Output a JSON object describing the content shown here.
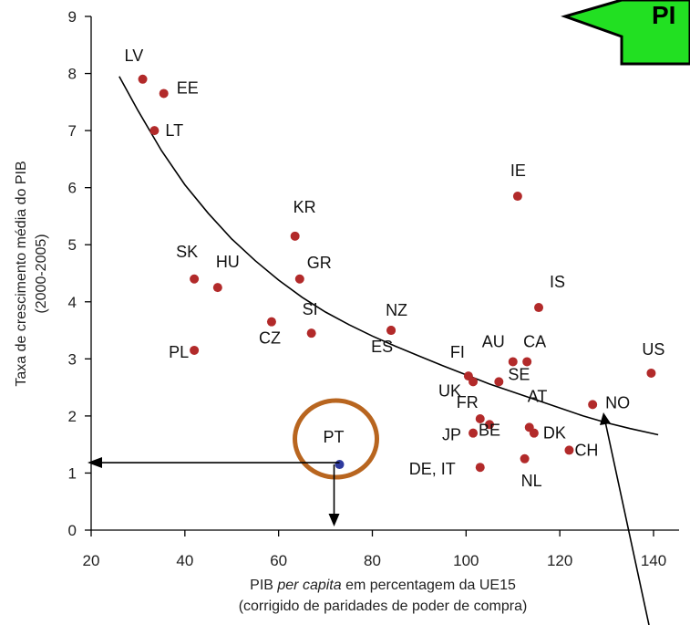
{
  "colors": {
    "points": "#b22a2a",
    "highlight_point": "#2e3a9e",
    "circle": "#b8651f",
    "badge": "#22e022",
    "curve": "#000000"
  },
  "badge": {
    "text": "PI"
  },
  "chart_data": {
    "type": "scatter",
    "xlabel": "PIB per capita  em percentagem da UE15",
    "xlabel_parts": [
      "PIB ",
      "per capita",
      "  em percentagem da UE15"
    ],
    "xlabel_line2": "(corrigido de paridades de poder de compra)",
    "ylabel": "Taxa de crescimento média do PIB",
    "ylabel_line2": "(2000-2005)",
    "xlim": [
      20,
      145
    ],
    "ylim": [
      0,
      9
    ],
    "xticks": [
      20,
      40,
      60,
      80,
      100,
      120,
      140
    ],
    "yticks": [
      0,
      1,
      2,
      3,
      4,
      5,
      6,
      7,
      8,
      9
    ],
    "grid": false,
    "points": [
      {
        "label": "LV",
        "x": 31,
        "y": 7.9
      },
      {
        "label": "EE",
        "x": 35.5,
        "y": 7.65
      },
      {
        "label": "LT",
        "x": 33.5,
        "y": 7.0
      },
      {
        "label": "IE",
        "x": 111,
        "y": 5.85
      },
      {
        "label": "KR",
        "x": 63.5,
        "y": 5.15
      },
      {
        "label": "SK",
        "x": 42,
        "y": 4.4
      },
      {
        "label": "HU",
        "x": 47,
        "y": 4.25
      },
      {
        "label": "GR",
        "x": 64.5,
        "y": 4.4
      },
      {
        "label": "IS",
        "x": 115.5,
        "y": 3.9
      },
      {
        "label": "SI",
        "x": 67,
        "y": 3.45
      },
      {
        "label": "CZ",
        "x": 58.5,
        "y": 3.65
      },
      {
        "label": "NZ",
        "x": 84,
        "y": 3.5
      },
      {
        "label": "PL",
        "x": 42,
        "y": 3.15
      },
      {
        "label": "AU",
        "x": 110,
        "y": 2.95
      },
      {
        "label": "CA",
        "x": 113,
        "y": 2.95
      },
      {
        "label": "US",
        "x": 139.5,
        "y": 2.75
      },
      {
        "label": "SE",
        "x": 107,
        "y": 2.6
      },
      {
        "label": "UK",
        "x": 101.5,
        "y": 2.6
      },
      {
        "label": "FI",
        "x": 100.5,
        "y": 2.7
      },
      {
        "label": "NO",
        "x": 127,
        "y": 2.2
      },
      {
        "label": "FR",
        "x": 103,
        "y": 1.95
      },
      {
        "label": "JP",
        "x": 101.5,
        "y": 1.7
      },
      {
        "label": "BE",
        "x": 105,
        "y": 1.85
      },
      {
        "label": "AT",
        "x": 113.5,
        "y": 1.8
      },
      {
        "label": "DK",
        "x": 114.5,
        "y": 1.7
      },
      {
        "label": "CH",
        "x": 122,
        "y": 1.4
      },
      {
        "label": "NL",
        "x": 112.5,
        "y": 1.25
      },
      {
        "label": "DE, IT",
        "x": 103,
        "y": 1.1
      },
      {
        "label": "ES",
        "x": 84,
        "y": 3.5
      }
    ],
    "highlight": {
      "label": "PT",
      "x": 73,
      "y": 1.15
    },
    "trend_curve": [
      [
        26,
        7.95
      ],
      [
        30,
        7.35
      ],
      [
        35,
        6.65
      ],
      [
        40,
        6.05
      ],
      [
        45,
        5.55
      ],
      [
        50,
        5.1
      ],
      [
        55,
        4.72
      ],
      [
        60,
        4.38
      ],
      [
        65,
        4.08
      ],
      [
        70,
        3.82
      ],
      [
        75,
        3.6
      ],
      [
        80,
        3.4
      ],
      [
        85,
        3.22
      ],
      [
        90,
        3.05
      ],
      [
        95,
        2.88
      ],
      [
        100,
        2.72
      ],
      [
        105,
        2.56
      ],
      [
        110,
        2.42
      ],
      [
        115,
        2.28
      ],
      [
        120,
        2.14
      ],
      [
        125,
        2.0
      ],
      [
        130,
        1.88
      ],
      [
        135,
        1.78
      ],
      [
        141,
        1.67
      ]
    ]
  }
}
